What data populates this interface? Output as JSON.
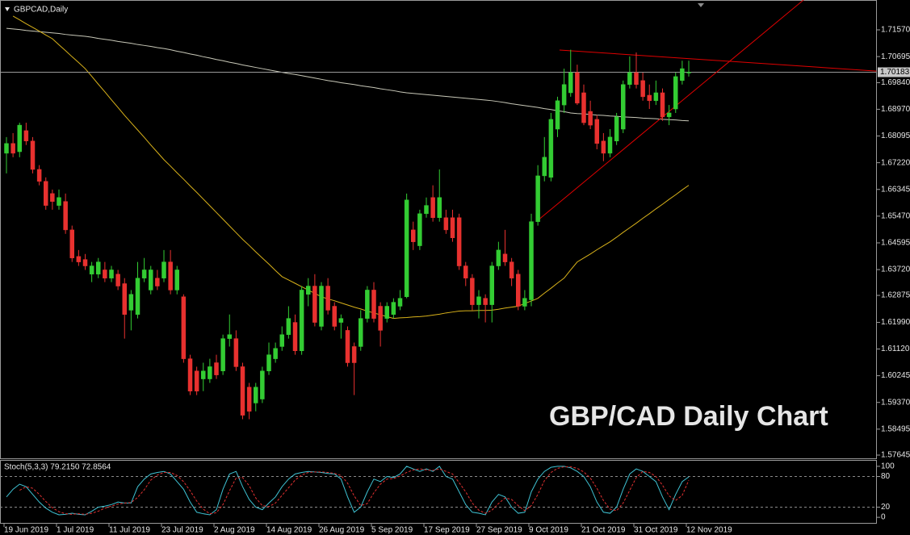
{
  "chart_data": {
    "type": "candlestick",
    "title": "GBPCAD,Daily",
    "annotation": "GBP/CAD Daily Chart",
    "annotation_color": "#f5a01a",
    "up_color": "#33cc33",
    "down_color": "#e8312f",
    "categories": [
      "19 Jun 2019",
      null,
      null,
      null,
      null,
      null,
      null,
      null,
      "1 Jul 2019",
      null,
      null,
      null,
      null,
      null,
      null,
      null,
      "11 Jul 2019",
      null,
      null,
      null,
      null,
      null,
      null,
      null,
      "23 Jul 2019",
      null,
      null,
      null,
      null,
      null,
      null,
      null,
      "2 Aug 2019",
      null,
      null,
      null,
      null,
      null,
      null,
      null,
      "14 Aug 2019",
      null,
      null,
      null,
      null,
      null,
      null,
      null,
      "26 Aug 2019",
      null,
      null,
      null,
      null,
      null,
      null,
      null,
      "5 Sep 2019",
      null,
      null,
      null,
      null,
      null,
      null,
      null,
      "17 Sep 2019",
      null,
      null,
      null,
      null,
      null,
      null,
      null,
      "27 Sep 2019",
      null,
      null,
      null,
      null,
      null,
      null,
      null,
      "9 Oct 2019",
      null,
      null,
      null,
      null,
      null,
      null,
      null,
      "21 Oct 2019",
      null,
      null,
      null,
      null,
      null,
      null,
      null,
      "31 Oct 2019",
      null,
      null,
      null,
      null,
      null,
      null,
      null,
      "12 Nov 2019"
    ],
    "open": [
      1.6753,
      1.6785,
      1.6758,
      1.6827,
      1.6793,
      1.67,
      1.6661,
      1.6621,
      1.6582,
      1.6595,
      1.6502,
      1.6415,
      1.6405,
      1.6357,
      1.6357,
      1.6371,
      1.6344,
      1.6357,
      1.6326,
      1.6239,
      1.6225,
      1.6344,
      1.6305,
      1.6344,
      1.6344,
      1.6397,
      1.6305,
      1.6283,
      1.608,
      1.604,
      1.6014,
      1.6014,
      1.6067,
      1.604,
      1.6146,
      1.6146,
      1.6054,
      1.5987,
      1.5935,
      1.5948,
      1.604,
      1.608,
      1.612,
      1.6159,
      1.6199,
      1.6106,
      1.6291,
      1.6318,
      1.6186,
      1.6318,
      1.6252,
      1.6199,
      1.6173,
      1.612,
      1.612,
      1.6212,
      1.6305,
      1.6252,
      1.6212,
      1.6225,
      1.6252,
      1.6283,
      1.6502,
      1.645,
      1.6555,
      1.6608,
      1.6542,
      1.6542,
      1.6542,
      1.6542,
      1.6384,
      1.6344,
      1.6257,
      1.6278,
      1.6257,
      1.6384,
      1.6423,
      1.6397,
      1.6357,
      1.6252,
      1.6273,
      1.6529,
      1.6679,
      1.6674,
      1.6832,
      1.6911,
      1.6951,
      1.7017,
      1.6951,
      1.689,
      1.6864,
      1.6793,
      1.6753,
      1.6793,
      1.6832,
      1.6978,
      1.7017,
      1.6991,
      1.6943,
      1.6925,
      1.6951,
      1.6872,
      1.6898,
      1.6991,
      1.7017
    ],
    "high": [
      1.6806,
      1.6819,
      1.6853,
      1.6853,
      1.6806,
      1.6714,
      1.6674,
      1.6634,
      1.6634,
      1.6621,
      1.6516,
      1.6436,
      1.6423,
      1.6397,
      1.641,
      1.6397,
      1.6384,
      1.6371,
      1.6344,
      1.6305,
      1.6397,
      1.641,
      1.6384,
      1.6371,
      1.6436,
      1.6436,
      1.6384,
      1.6291,
      1.6093,
      1.6054,
      1.6067,
      1.608,
      1.6093,
      1.6159,
      1.6225,
      1.6173,
      1.6067,
      1.6001,
      1.6001,
      1.6054,
      1.6133,
      1.6133,
      1.6186,
      1.6252,
      1.6225,
      1.6318,
      1.6344,
      1.6357,
      1.6331,
      1.6344,
      1.6265,
      1.6225,
      1.6186,
      1.6133,
      1.6239,
      1.6318,
      1.6331,
      1.6265,
      1.6265,
      1.6278,
      1.6305,
      1.6621,
      1.6529,
      1.6568,
      1.6608,
      1.6648,
      1.67,
      1.6568,
      1.6568,
      1.6555,
      1.6397,
      1.6357,
      1.6305,
      1.6291,
      1.6397,
      1.6463,
      1.6502,
      1.641,
      1.6371,
      1.6305,
      1.6555,
      1.6714,
      1.6806,
      1.6885,
      1.6938,
      1.703,
      1.7092,
      1.7043,
      1.6978,
      1.6925,
      1.6878,
      1.6819,
      1.6832,
      1.6885,
      1.6991,
      1.707,
      1.7083,
      1.7017,
      1.6978,
      1.6991,
      1.6965,
      1.6911,
      1.7017,
      1.7056,
      1.7056
    ],
    "low": [
      1.6687,
      1.674,
      1.674,
      1.678,
      1.6687,
      1.6648,
      1.6568,
      1.6568,
      1.6568,
      1.6489,
      1.6397,
      1.6384,
      1.6371,
      1.6331,
      1.6344,
      1.6331,
      1.6331,
      1.6305,
      1.6146,
      1.6173,
      1.6212,
      1.6331,
      1.6291,
      1.6305,
      1.6331,
      1.6291,
      1.6291,
      1.6067,
      1.5961,
      1.5961,
      1.5974,
      1.6001,
      1.6014,
      1.6027,
      1.612,
      1.604,
      1.5882,
      1.5882,
      1.5908,
      1.5935,
      1.6027,
      1.6067,
      1.6106,
      1.6146,
      1.6093,
      1.6093,
      1.6252,
      1.6186,
      1.6173,
      1.6225,
      1.6173,
      1.6146,
      1.6054,
      1.5961,
      1.6106,
      1.6199,
      1.6199,
      1.612,
      1.6199,
      1.6212,
      1.6239,
      1.6278,
      1.6436,
      1.6436,
      1.6542,
      1.6529,
      1.6529,
      1.6489,
      1.6463,
      1.6371,
      1.6318,
      1.6239,
      1.6212,
      1.6199,
      1.6199,
      1.6371,
      1.6384,
      1.6318,
      1.6239,
      1.6239,
      1.6252,
      1.6516,
      1.6661,
      1.6661,
      1.6806,
      1.6885,
      1.6938,
      1.6911,
      1.6845,
      1.6832,
      1.6766,
      1.6727,
      1.674,
      1.678,
      1.6819,
      1.6965,
      1.6965,
      1.6925,
      1.6898,
      1.6911,
      1.6859,
      1.6845,
      1.6885,
      1.6978,
      1.7004
    ],
    "close": [
      1.6785,
      1.6753,
      1.6845,
      1.6793,
      1.67,
      1.6661,
      1.6582,
      1.6595,
      1.6608,
      1.6502,
      1.641,
      1.6397,
      1.6384,
      1.6384,
      1.6397,
      1.6344,
      1.6371,
      1.6318,
      1.6225,
      1.6291,
      1.6344,
      1.6371,
      1.6371,
      1.6318,
      1.6397,
      1.6305,
      1.6371,
      1.608,
      1.5974,
      1.5974,
      1.604,
      1.6054,
      1.6027,
      1.6146,
      1.6159,
      1.6054,
      1.5895,
      1.5908,
      1.5987,
      1.604,
      1.6093,
      1.6114,
      1.6159,
      1.6212,
      1.6106,
      1.6305,
      1.6318,
      1.6199,
      1.6318,
      1.6239,
      1.6186,
      1.6212,
      1.6067,
      1.6067,
      1.6212,
      1.6305,
      1.6212,
      1.6173,
      1.6252,
      1.6265,
      1.6278,
      1.66,
      1.6463,
      1.6555,
      1.6582,
      1.6542,
      1.6608,
      1.6502,
      1.6476,
      1.6384,
      1.6344,
      1.6257,
      1.6283,
      1.6257,
      1.6384,
      1.6436,
      1.6397,
      1.6344,
      1.6252,
      1.6278,
      1.6529,
      1.6679,
      1.674,
      1.6864,
      1.6925,
      1.6978,
      1.7017,
      1.6917,
      1.6853,
      1.6845,
      1.6785,
      1.6753,
      1.6806,
      1.6872,
      1.6978,
      1.7017,
      1.6978,
      1.6938,
      1.6925,
      1.6951,
      1.6872,
      1.6885,
      1.7004,
      1.703,
      1.70183
    ],
    "series": [
      {
        "color": "#c8c8b8",
        "values": [
          1.7162,
          1.716,
          1.7158,
          1.7155,
          1.7153,
          1.7151,
          1.7149,
          1.7147,
          1.7145,
          1.7142,
          1.714,
          1.7138,
          1.7136,
          1.7133,
          1.7129,
          1.7126,
          1.7123,
          1.7119,
          1.7116,
          1.7113,
          1.7109,
          1.7106,
          1.7103,
          1.7099,
          1.7096,
          1.7092,
          1.7087,
          1.7083,
          1.7078,
          1.7074,
          1.7069,
          1.7065,
          1.706,
          1.7056,
          1.7051,
          1.7047,
          1.7042,
          1.7038,
          1.7034,
          1.703,
          1.7026,
          1.7022,
          1.7018,
          1.7014,
          1.7011,
          1.7007,
          1.7003,
          1.6999,
          1.6995,
          1.6991,
          1.6988,
          1.6984,
          1.6981,
          1.6978,
          1.6974,
          1.6971,
          1.6968,
          1.6964,
          1.6961,
          1.6958,
          1.6954,
          1.6951,
          1.6949,
          1.6947,
          1.6945,
          1.6943,
          1.6941,
          1.6939,
          1.6937,
          1.6935,
          1.6933,
          1.6931,
          1.6929,
          1.6927,
          1.6925,
          1.6922,
          1.6919,
          1.6915,
          1.6912,
          1.6909,
          1.6906,
          1.6903,
          1.6899,
          1.6896,
          1.6892,
          1.6889,
          1.6885,
          1.6883,
          1.6882,
          1.688,
          1.6878,
          1.6877,
          1.6875,
          1.6874,
          1.6872,
          1.6871,
          1.687,
          1.6868,
          1.6867,
          1.6866,
          1.6864,
          1.6863,
          1.6862,
          1.686,
          1.6859
        ]
      },
      {
        "color": "#d9b21a",
        "values": [
          null,
          1.7202,
          1.719,
          1.7177,
          1.7165,
          1.7153,
          1.714,
          1.7128,
          1.7108,
          1.7089,
          1.7069,
          1.705,
          1.703,
          1.7005,
          1.6979,
          1.6954,
          1.6928,
          1.6903,
          1.6877,
          1.6853,
          1.6829,
          1.6805,
          1.678,
          1.6756,
          1.6732,
          1.6711,
          1.6689,
          1.6668,
          1.6646,
          1.6625,
          1.6603,
          1.6581,
          1.6559,
          1.6537,
          1.6515,
          1.6493,
          1.6471,
          1.6451,
          1.643,
          1.641,
          1.639,
          1.6369,
          1.6349,
          1.6338,
          1.6327,
          1.6316,
          1.6305,
          1.6294,
          1.6283,
          1.6276,
          1.627,
          1.6263,
          1.6256,
          1.6249,
          1.6243,
          1.6236,
          1.623,
          1.6224,
          1.6218,
          1.6212,
          1.6214,
          1.6215,
          1.6217,
          1.6218,
          1.622,
          1.6223,
          1.6226,
          1.623,
          1.6233,
          1.6236,
          1.6237,
          1.6237,
          1.6238,
          1.6238,
          1.6239,
          1.6242,
          1.6246,
          1.6249,
          1.6252,
          1.6261,
          1.6269,
          1.6278,
          1.6295,
          1.6311,
          1.6328,
          1.6344,
          1.6371,
          1.6397,
          1.641,
          1.6423,
          1.6437,
          1.645,
          1.6463,
          1.6478,
          1.6494,
          1.6509,
          1.6524,
          1.654,
          1.6555,
          1.6571,
          1.6586,
          1.6602,
          1.6617,
          1.6633,
          1.6648
        ]
      }
    ],
    "trendlines": [
      {
        "color": "#e00000",
        "x": [
          84.3,
          132.6
        ],
        "y": [
          1.7091,
          1.7022
        ]
      },
      {
        "color": "#e00000",
        "x": [
          81.2,
          121.5
        ],
        "y": [
          1.6537,
          1.7255
        ]
      }
    ],
    "last_price": 1.70183,
    "ylim": [
      1.57539,
      1.72548
    ],
    "yticks": [
      {
        "value": 1.7157,
        "label": "1.71570"
      },
      1.70695,
      {
        "value": 1.6984,
        "label": "1.69840"
      },
      {
        "value": 1.6897,
        "label": "1.68970"
      },
      1.68095,
      {
        "value": 1.6722,
        "label": "1.67220"
      },
      1.66345,
      {
        "value": 1.6547,
        "label": "1.65470"
      },
      1.64595,
      {
        "value": 1.6372,
        "label": "1.63720"
      },
      1.62875,
      {
        "value": 1.6199,
        "label": "1.61990"
      },
      {
        "value": 1.6112,
        "label": "1.61120"
      },
      1.60245,
      {
        "value": 1.5937,
        "label": "1.59370"
      },
      1.58495,
      1.57645
    ],
    "stochastic": {
      "title": "Stoch(5,3,3) 79.2150 72.8564",
      "ylim": [
        -10.9,
        110.9
      ],
      "yticks": [
        100,
        80,
        20,
        0
      ],
      "levels": [
        80,
        20
      ],
      "series": [
        {
          "color": "#3fc3d4",
          "dashed": false,
          "values": [
            40,
            55,
            65,
            60,
            45,
            30,
            18,
            10,
            5,
            6,
            8,
            6,
            5,
            12,
            20,
            22,
            25,
            30,
            28,
            28,
            60,
            75,
            85,
            88,
            90,
            85,
            70,
            55,
            30,
            10,
            7,
            5,
            15,
            55,
            85,
            90,
            60,
            35,
            20,
            15,
            28,
            40,
            60,
            75,
            85,
            88,
            90,
            89,
            88,
            86,
            85,
            75,
            40,
            10,
            20,
            50,
            75,
            70,
            80,
            78,
            85,
            100,
            95,
            90,
            95,
            90,
            100,
            80,
            75,
            50,
            25,
            10,
            8,
            5,
            30,
            45,
            40,
            20,
            8,
            10,
            50,
            75,
            90,
            98,
            100,
            100,
            97,
            90,
            80,
            60,
            30,
            10,
            8,
            20,
            55,
            85,
            95,
            90,
            80,
            70,
            40,
            15,
            45,
            70,
            79.215
          ]
        },
        {
          "color": "#e03030",
          "dashed": true,
          "values": [
            null,
            null,
            53,
            60,
            57,
            45,
            31,
            19,
            11,
            7,
            6,
            7,
            6,
            8,
            12,
            18,
            22,
            26,
            28,
            29,
            39,
            54,
            73,
            83,
            88,
            88,
            82,
            70,
            52,
            32,
            16,
            7,
            9,
            25,
            52,
            77,
            78,
            62,
            38,
            23,
            21,
            28,
            43,
            58,
            73,
            83,
            88,
            89,
            89,
            88,
            86,
            82,
            67,
            42,
            23,
            27,
            48,
            65,
            75,
            76,
            81,
            88,
            93,
            95,
            93,
            92,
            95,
            90,
            85,
            68,
            50,
            28,
            14,
            8,
            14,
            27,
            38,
            35,
            23,
            13,
            23,
            45,
            72,
            88,
            96,
            99,
            99,
            96,
            89,
            77,
            57,
            33,
            16,
            13,
            28,
            53,
            78,
            90,
            88,
            80,
            63,
            42,
            33,
            43,
            72.8564
          ]
        }
      ]
    }
  }
}
